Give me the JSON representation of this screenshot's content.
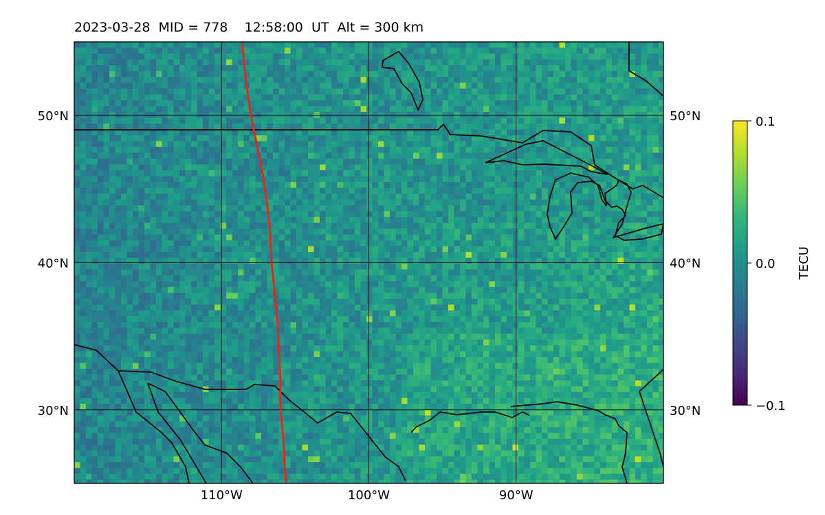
{
  "title": "2023-03-28  MID = 778    12:58:00  UT  Alt = 300 km",
  "map": {
    "lon_range": [
      -120,
      -80
    ],
    "lat_range": [
      25,
      55
    ],
    "lat_ticks": [
      {
        "value": 50,
        "label": "50°N"
      },
      {
        "value": 40,
        "label": "40°N"
      },
      {
        "value": 30,
        "label": "30°N"
      }
    ],
    "lon_ticks": [
      {
        "value": -110,
        "label": "110°W"
      },
      {
        "value": -100,
        "label": "100°W"
      },
      {
        "value": -90,
        "label": "90°W"
      }
    ],
    "track_color": "#e8261b",
    "track": [
      [
        -108.6,
        55
      ],
      [
        -108.3,
        52
      ],
      [
        -108.0,
        50
      ],
      [
        -107.6,
        48
      ],
      [
        -107.2,
        46
      ],
      [
        -106.9,
        44
      ],
      [
        -106.7,
        42
      ],
      [
        -106.6,
        40
      ],
      [
        -106.4,
        38
      ],
      [
        -106.2,
        36
      ],
      [
        -106.1,
        34
      ],
      [
        -106.0,
        32
      ],
      [
        -106.0,
        30
      ],
      [
        -105.8,
        28
      ],
      [
        -105.7,
        26
      ],
      [
        -105.6,
        25
      ]
    ]
  },
  "colorbar": {
    "label": "TECU",
    "ticks": [
      {
        "value": 0.1,
        "label": "0.1"
      },
      {
        "value": 0.0,
        "label": "0.0"
      },
      {
        "value": -0.1,
        "label": "−0.1"
      }
    ],
    "range": [
      -0.1,
      0.1
    ],
    "colors": [
      "#440154",
      "#482878",
      "#3e4989",
      "#31688e",
      "#26828e",
      "#1f9e89",
      "#35b779",
      "#6ece58",
      "#b5de2b",
      "#fde725"
    ]
  }
}
